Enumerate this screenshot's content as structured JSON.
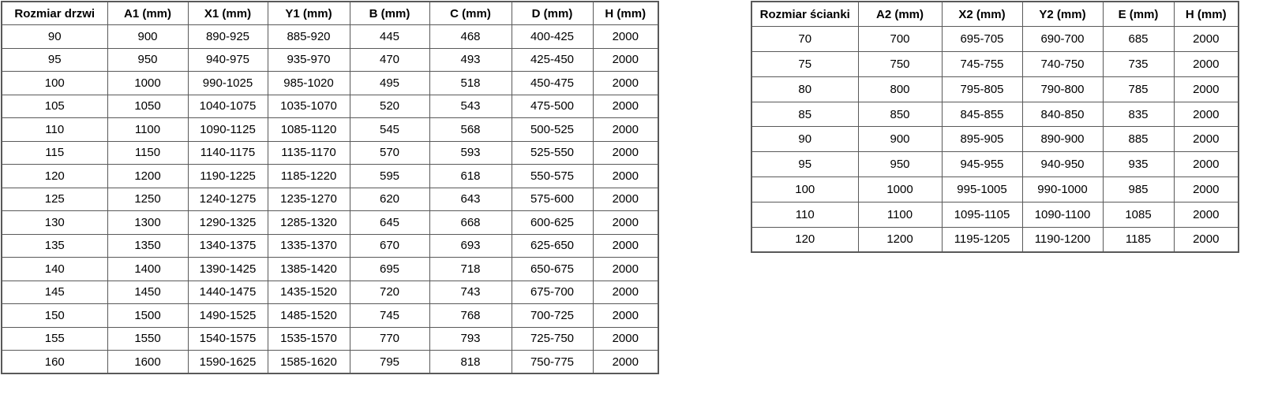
{
  "door_table": {
    "name": "Rozmiar drzwi table",
    "headers": [
      "Rozmiar drzwi",
      "A1 (mm)",
      "X1 (mm)",
      "Y1 (mm)",
      "B (mm)",
      "C (mm)",
      "D (mm)",
      "H (mm)"
    ],
    "rows": [
      [
        "90",
        "900",
        "890-925",
        "885-920",
        "445",
        "468",
        "400-425",
        "2000"
      ],
      [
        "95",
        "950",
        "940-975",
        "935-970",
        "470",
        "493",
        "425-450",
        "2000"
      ],
      [
        "100",
        "1000",
        "990-1025",
        "985-1020",
        "495",
        "518",
        "450-475",
        "2000"
      ],
      [
        "105",
        "1050",
        "1040-1075",
        "1035-1070",
        "520",
        "543",
        "475-500",
        "2000"
      ],
      [
        "110",
        "1100",
        "1090-1125",
        "1085-1120",
        "545",
        "568",
        "500-525",
        "2000"
      ],
      [
        "115",
        "1150",
        "1140-1175",
        "1135-1170",
        "570",
        "593",
        "525-550",
        "2000"
      ],
      [
        "120",
        "1200",
        "1190-1225",
        "1185-1220",
        "595",
        "618",
        "550-575",
        "2000"
      ],
      [
        "125",
        "1250",
        "1240-1275",
        "1235-1270",
        "620",
        "643",
        "575-600",
        "2000"
      ],
      [
        "130",
        "1300",
        "1290-1325",
        "1285-1320",
        "645",
        "668",
        "600-625",
        "2000"
      ],
      [
        "135",
        "1350",
        "1340-1375",
        "1335-1370",
        "670",
        "693",
        "625-650",
        "2000"
      ],
      [
        "140",
        "1400",
        "1390-1425",
        "1385-1420",
        "695",
        "718",
        "650-675",
        "2000"
      ],
      [
        "145",
        "1450",
        "1440-1475",
        "1435-1520",
        "720",
        "743",
        "675-700",
        "2000"
      ],
      [
        "150",
        "1500",
        "1490-1525",
        "1485-1520",
        "745",
        "768",
        "700-725",
        "2000"
      ],
      [
        "155",
        "1550",
        "1540-1575",
        "1535-1570",
        "770",
        "793",
        "725-750",
        "2000"
      ],
      [
        "160",
        "1600",
        "1590-1625",
        "1585-1620",
        "795",
        "818",
        "750-775",
        "2000"
      ]
    ]
  },
  "wall_table": {
    "name": "Rozmiar ścianki table",
    "headers": [
      "Rozmiar ścianki",
      "A2 (mm)",
      "X2 (mm)",
      "Y2 (mm)",
      "E (mm)",
      "H (mm)"
    ],
    "rows": [
      [
        "70",
        "700",
        "695-705",
        "690-700",
        "685",
        "2000"
      ],
      [
        "75",
        "750",
        "745-755",
        "740-750",
        "735",
        "2000"
      ],
      [
        "80",
        "800",
        "795-805",
        "790-800",
        "785",
        "2000"
      ],
      [
        "85",
        "850",
        "845-855",
        "840-850",
        "835",
        "2000"
      ],
      [
        "90",
        "900",
        "895-905",
        "890-900",
        "885",
        "2000"
      ],
      [
        "95",
        "950",
        "945-955",
        "940-950",
        "935",
        "2000"
      ],
      [
        "100",
        "1000",
        "995-1005",
        "990-1000",
        "985",
        "2000"
      ],
      [
        "110",
        "1100",
        "1095-1105",
        "1090-1100",
        "1085",
        "2000"
      ],
      [
        "120",
        "1200",
        "1195-1205",
        "1190-1200",
        "1185",
        "2000"
      ]
    ]
  },
  "colors": {
    "border": "#595959",
    "text": "#000000",
    "background": "#ffffff"
  }
}
